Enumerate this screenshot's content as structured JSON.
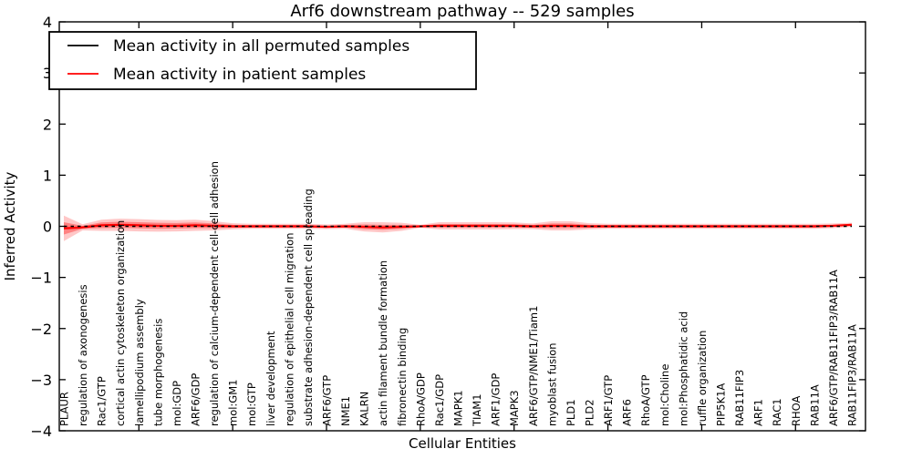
{
  "figure": {
    "background": "#ffffff",
    "frame_color": "#000000"
  },
  "chart_data": {
    "type": "line",
    "title": "Arf6 downstream pathway -- 529 samples",
    "xlabel": "Cellular Entities",
    "ylabel": "Inferred Activity",
    "ylim": [
      -4,
      4
    ],
    "yticks": [
      4,
      3,
      2,
      1,
      0,
      -1,
      -2,
      -3,
      -4
    ],
    "grid": false,
    "legend_position": "upper left",
    "categories": [
      "PLAUR",
      "regulation of axonogenesis",
      "Rac1/GTP",
      "cortical actin cytoskeleton organization",
      "lamellipodium assembly",
      "tube morphogenesis",
      "mol:GDP",
      "ARF6/GDP",
      "regulation of calcium-dependent cell-cell adhesion",
      "mol:GM1",
      "mol:GTP",
      "liver development",
      "regulation of epithelial cell migration",
      "substrate adhesion-dependent cell spreading",
      "ARF6/GTP",
      "NME1",
      "KALRN",
      "actin filament bundle formation",
      "fibronectin binding",
      "RhoA/GDP",
      "Rac1/GDP",
      "MAPK1",
      "TIAM1",
      "ARF1/GDP",
      "MAPK3",
      "ARF6/GTP/NME1/Tiam1",
      "myoblast fusion",
      "PLD1",
      "PLD2",
      "ARF1/GTP",
      "ARF6",
      "RhoA/GTP",
      "mol:Choline",
      "mol:Phosphatidic acid",
      "ruffle organization",
      "PIP5K1A",
      "RAB11FIP3",
      "ARF1",
      "RAC1",
      "RHOA",
      "RAB11A",
      "ARF6/GTP/RAB11FIP3/RAB11A",
      "RAB11FIP3/RAB11A"
    ],
    "series": [
      {
        "name": "Mean activity in all permuted samples",
        "color": "#000000",
        "style": "dashed-overlay",
        "values": [
          0,
          0,
          0,
          0,
          0,
          0,
          0,
          0,
          0,
          0,
          0,
          0,
          0,
          0,
          0,
          0,
          0,
          0,
          0,
          0,
          0,
          0,
          0,
          0,
          0,
          0,
          0,
          0,
          0,
          0,
          0,
          0,
          0,
          0,
          0,
          0,
          0,
          0,
          0,
          0,
          0,
          0,
          0
        ]
      },
      {
        "name": "Mean activity in patient samples",
        "color": "#ff0000",
        "style": "solid",
        "values": [
          -0.04,
          -0.02,
          0.02,
          0.03,
          0.02,
          0.01,
          0.01,
          0.02,
          0.01,
          0,
          0,
          0,
          0,
          0,
          -0.01,
          0,
          -0.01,
          -0.02,
          -0.01,
          0,
          0.01,
          0.01,
          0.01,
          0.01,
          0.01,
          0,
          0.01,
          0.01,
          0,
          0,
          0,
          0,
          0,
          0,
          0,
          0,
          0,
          0,
          0,
          0,
          0,
          0.01,
          0.03
        ]
      }
    ],
    "band": {
      "color": "#ff0000",
      "outer_alpha": 0.22,
      "inner_alpha": 0.35,
      "outer_halfwidth": [
        0.25,
        0.06,
        0.11,
        0.12,
        0.12,
        0.115,
        0.11,
        0.11,
        0.09,
        0.06,
        0.05,
        0.05,
        0.05,
        0.05,
        0.045,
        0.05,
        0.09,
        0.1,
        0.08,
        0.03,
        0.07,
        0.07,
        0.07,
        0.07,
        0.065,
        0.055,
        0.09,
        0.09,
        0.06,
        0.05,
        0.05,
        0.05,
        0.05,
        0.05,
        0.05,
        0.05,
        0.05,
        0.05,
        0.05,
        0.05,
        0.05,
        0.045,
        0.04
      ],
      "inner_halfwidth": [
        0.12,
        0.03,
        0.055,
        0.06,
        0.06,
        0.058,
        0.055,
        0.055,
        0.045,
        0.03,
        0.025,
        0.025,
        0.025,
        0.025,
        0.022,
        0.025,
        0.045,
        0.05,
        0.04,
        0.015,
        0.035,
        0.035,
        0.035,
        0.035,
        0.032,
        0.028,
        0.045,
        0.045,
        0.03,
        0.025,
        0.025,
        0.025,
        0.025,
        0.025,
        0.025,
        0.025,
        0.025,
        0.025,
        0.025,
        0.025,
        0.025,
        0.022,
        0.02
      ]
    }
  }
}
